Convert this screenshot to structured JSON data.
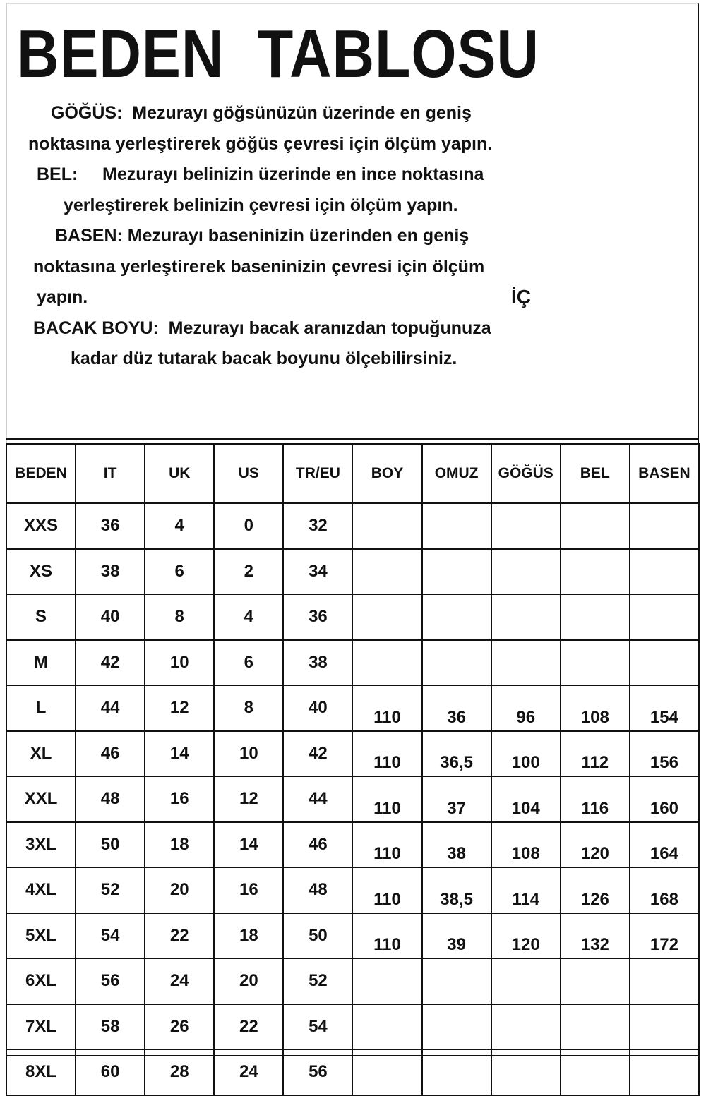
{
  "title": "BEDEN  TABLOSU",
  "instructions": [
    "GÖĞÜS:  Mezurayı göğsünüzün üzerinde en geniş",
    "noktasına yerleştirerek göğüs çevresi için ölçüm yapın.",
    "BEL:     Mezurayı belinizin üzerinde en ince noktasına",
    "yerleştirerek belinizin çevresi için ölçüm yapın.",
    "BASEN: Mezurayı baseninizin üzerinden en geniş",
    "noktasına yerleştirerek baseninizin çevresi için ölçüm",
    "yapın.",
    "BACAK BOYU:  Mezurayı bacak aranızdan topuğunuza",
    "kadar düz tutarak bacak boyunu ölçebilirsiniz."
  ],
  "stray_text": "İÇ",
  "table": {
    "headers": [
      "BEDEN",
      "IT",
      "UK",
      "US",
      "TR/EU",
      "BOY",
      "OMUZ",
      "GÖĞÜS",
      "BEL",
      "BASEN"
    ],
    "rows": [
      [
        "XXS",
        "36",
        "4",
        "0",
        "32",
        "",
        "",
        "",
        "",
        ""
      ],
      [
        "XS",
        "38",
        "6",
        "2",
        "34",
        "",
        "",
        "",
        "",
        ""
      ],
      [
        "S",
        "40",
        "8",
        "4",
        "36",
        "",
        "",
        "",
        "",
        ""
      ],
      [
        "M",
        "42",
        "10",
        "6",
        "38",
        "",
        "",
        "",
        "",
        ""
      ],
      [
        "L",
        "44",
        "12",
        "8",
        "40",
        "110",
        "36",
        "96",
        "108",
        "154"
      ],
      [
        "XL",
        "46",
        "14",
        "10",
        "42",
        "110",
        "36,5",
        "100",
        "112",
        "156"
      ],
      [
        "XXL",
        "48",
        "16",
        "12",
        "44",
        "110",
        "37",
        "104",
        "116",
        "160"
      ],
      [
        "3XL",
        "50",
        "18",
        "14",
        "46",
        "110",
        "38",
        "108",
        "120",
        "164"
      ],
      [
        "4XL",
        "52",
        "20",
        "16",
        "48",
        "110",
        "38,5",
        "114",
        "126",
        "168"
      ],
      [
        "5XL",
        "54",
        "22",
        "18",
        "50",
        "110",
        "39",
        "120",
        "132",
        "172"
      ],
      [
        "6XL",
        "56",
        "24",
        "20",
        "52",
        "",
        "",
        "",
        "",
        ""
      ],
      [
        "7XL",
        "58",
        "26",
        "22",
        "54",
        "",
        "",
        "",
        "",
        ""
      ],
      [
        "8XL",
        "60",
        "28",
        "24",
        "56",
        "",
        "",
        "",
        "",
        ""
      ]
    ]
  }
}
